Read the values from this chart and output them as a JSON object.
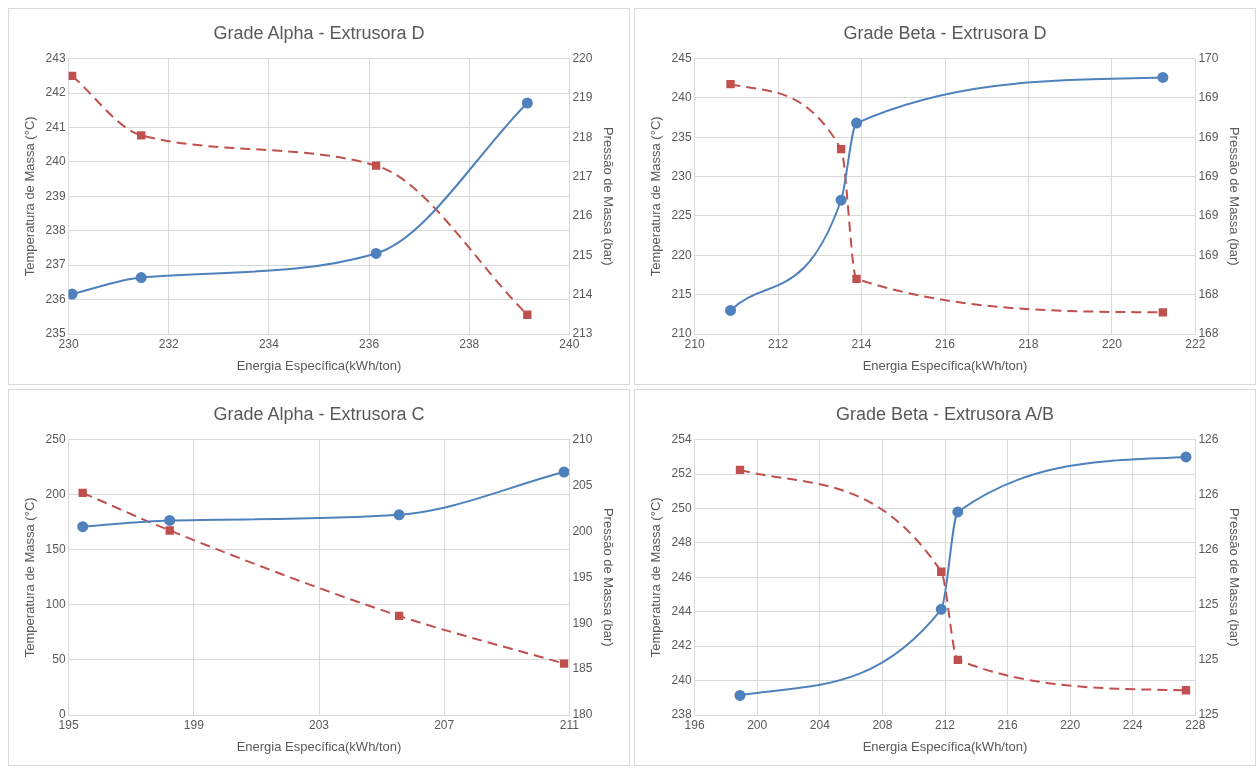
{
  "chart_data": [
    {
      "type": "line",
      "title": "Grade Alpha - Extrusora D",
      "xlabel": "Energia Específica(kWh/ton)",
      "ylabel": "Temperatura de Massa (°C)",
      "y2label": "Pressão de Massa (bar)",
      "xlim": [
        230,
        240
      ],
      "xticks": [
        230,
        232,
        234,
        236,
        238,
        240
      ],
      "ylim": [
        235,
        243
      ],
      "yticks": [
        235,
        236,
        237,
        238,
        239,
        240,
        241,
        242,
        243
      ],
      "y2lim": [
        213,
        220
      ],
      "y2ticks": [
        213,
        214,
        215,
        216,
        217,
        218,
        219,
        220
      ],
      "grid": true,
      "legend": false,
      "series": [
        {
          "color": "#4f81bd",
          "marker": "circle",
          "line_style": "solid",
          "x": [
            230.07,
            231.45,
            236.14,
            239.16
          ],
          "values": [
            236.16,
            236.64,
            237.34,
            241.71
          ]
        },
        {
          "color": "#c0504d",
          "marker": "square",
          "line_style": "dashed",
          "axis": "y2",
          "x": [
            230.07,
            231.45,
            236.14,
            239.16
          ],
          "values": [
            219.56,
            218.05,
            217.28,
            213.49
          ]
        }
      ]
    },
    {
      "type": "line",
      "title": "Grade Beta - Extrusora D",
      "xlabel": "Energia Específica(kWh/ton)",
      "ylabel": "Temperatura de Massa (°C)",
      "y2label": "Pressão de Massa (bar)",
      "xlim": [
        210,
        222
      ],
      "xticks": [
        210,
        212,
        214,
        216,
        218,
        220,
        222
      ],
      "ylim": [
        210,
        245
      ],
      "yticks": [
        210,
        215,
        220,
        225,
        230,
        235,
        240,
        245
      ],
      "y2lim": [
        168.2,
        169.6
      ],
      "y2ticks": [
        {
          "value": 168.2,
          "label": "168"
        },
        {
          "value": 168.4,
          "label": "168"
        },
        {
          "value": 168.6,
          "label": "169"
        },
        {
          "value": 168.8,
          "label": "169"
        },
        {
          "value": 169.0,
          "label": "169"
        },
        {
          "value": 169.2,
          "label": "169"
        },
        {
          "value": 169.4,
          "label": "169"
        },
        {
          "value": 169.6,
          "label": "170"
        }
      ],
      "grid": true,
      "legend": false,
      "series": [
        {
          "color": "#4f81bd",
          "marker": "circle",
          "line_style": "solid",
          "x": [
            210.86,
            213.51,
            213.88,
            221.22
          ],
          "values": [
            213.0,
            227.0,
            236.8,
            242.6
          ]
        },
        {
          "color": "#c0504d",
          "marker": "square",
          "line_style": "dashed",
          "axis": "y2",
          "x": [
            210.86,
            213.51,
            213.88,
            221.22
          ],
          "values": [
            169.47,
            169.14,
            168.48,
            168.31
          ]
        }
      ]
    },
    {
      "type": "line",
      "title": "Grade Alpha - Extrusora C",
      "xlabel": "Energia Específica(kWh/ton)",
      "ylabel": "Temperatura de Massa (°C)",
      "y2label": "Pressão de Massa (bar)",
      "xlim": [
        195,
        211
      ],
      "xticks": [
        195,
        199,
        203,
        207,
        211
      ],
      "ylim": [
        0,
        250
      ],
      "yticks": [
        0,
        50,
        100,
        150,
        200,
        250
      ],
      "y2lim": [
        180,
        210
      ],
      "y2ticks": [
        180,
        185,
        190,
        195,
        200,
        205,
        210
      ],
      "grid": true,
      "legend": false,
      "series": [
        {
          "color": "#4f81bd",
          "marker": "circle",
          "line_style": "solid",
          "x": [
            195.45,
            198.23,
            205.56,
            210.83
          ],
          "values": [
            171,
            176.6,
            181.7,
            220.6
          ]
        },
        {
          "color": "#c0504d",
          "marker": "square",
          "line_style": "dashed",
          "axis": "y2",
          "x": [
            195.45,
            198.23,
            205.56,
            210.83
          ],
          "values": [
            204.2,
            200.1,
            190.8,
            185.6
          ]
        }
      ]
    },
    {
      "type": "line",
      "title": "Grade Beta - Extrusora A/B",
      "xlabel": "Energia Específica(kWh/ton)",
      "ylabel": "Temperatura de Massa (°C)",
      "y2label": "Pressão de Massa (bar)",
      "xlim": [
        196,
        228
      ],
      "xticks": [
        196,
        200,
        204,
        208,
        212,
        216,
        220,
        224,
        228
      ],
      "ylim": [
        238,
        254
      ],
      "yticks": [
        238,
        240,
        242,
        244,
        246,
        248,
        250,
        252,
        254
      ],
      "y2lim": [
        125.0,
        126.0
      ],
      "y2ticks": [
        {
          "value": 125.0,
          "label": "125"
        },
        {
          "value": 125.2,
          "label": "125"
        },
        {
          "value": 125.4,
          "label": "125"
        },
        {
          "value": 125.6,
          "label": "126"
        },
        {
          "value": 125.8,
          "label": "126"
        },
        {
          "value": 126.0,
          "label": "126"
        }
      ],
      "grid": true,
      "legend": false,
      "series": [
        {
          "color": "#4f81bd",
          "marker": "circle",
          "line_style": "solid",
          "x": [
            198.9,
            211.76,
            212.82,
            227.4
          ],
          "values": [
            239.14,
            244.14,
            249.8,
            252.99
          ]
        },
        {
          "color": "#c0504d",
          "marker": "square",
          "line_style": "dashed",
          "axis": "y2",
          "x": [
            198.9,
            211.76,
            212.82,
            227.4
          ],
          "values": [
            125.89,
            125.52,
            125.2,
            125.09
          ]
        }
      ]
    }
  ]
}
